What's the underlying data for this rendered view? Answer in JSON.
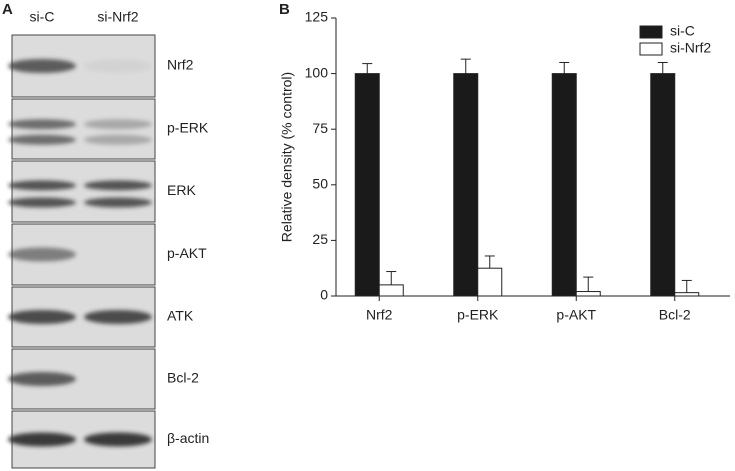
{
  "panel_a": {
    "label": "A",
    "lanes": [
      "si-C",
      "si-Nrf2"
    ],
    "blots": [
      "Nrf2",
      "p-ERK",
      "ERK",
      "p-AKT",
      "ATK",
      "Bcl-2",
      "β-actin"
    ]
  },
  "chart_data": {
    "type": "bar",
    "panel_label": "B",
    "y_label": "Relative density (% control)",
    "categories": [
      "Nrf2",
      "p-ERK",
      "p-AKT",
      "Bcl-2"
    ],
    "series": [
      {
        "name": "si-C",
        "color": "#1a1a1a",
        "values": [
          100,
          100,
          100,
          100
        ],
        "errors": [
          4.5,
          6.5,
          5,
          5
        ]
      },
      {
        "name": "si-Nrf2",
        "color": "#ffffff",
        "values": [
          5,
          12.5,
          2,
          1.5
        ],
        "errors": [
          6,
          5.5,
          6.5,
          5.5
        ]
      }
    ],
    "ylim": [
      0,
      125
    ],
    "yticks": [
      0,
      25,
      50,
      75,
      100,
      125
    ],
    "legend": "upper right"
  }
}
